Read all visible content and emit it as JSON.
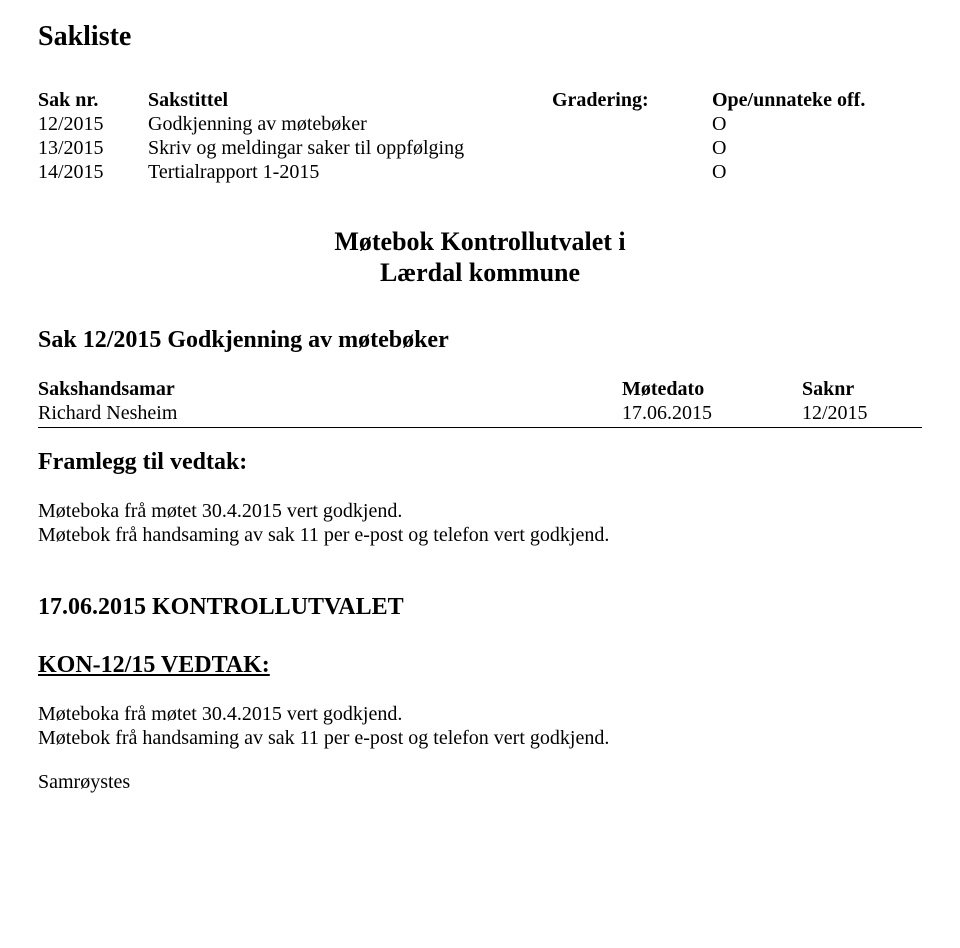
{
  "title": "Sakliste",
  "header": {
    "nr": "Sak nr.",
    "title": "Sakstittel",
    "grad": "Gradering:",
    "ope": "Ope/unnateke off."
  },
  "items": [
    {
      "nr": "12/2015",
      "title": "Godkjenning av møtebøker",
      "ope": "O"
    },
    {
      "nr": "13/2015",
      "title": "Skriv og meldingar saker til oppfølging",
      "ope": "O"
    },
    {
      "nr": "14/2015",
      "title": "Tertialrapport 1-2015",
      "ope": "O"
    }
  ],
  "centerblock": {
    "line1": "Møtebok Kontrollutvalet i",
    "line2": "Lærdal kommune"
  },
  "sak_heading": "Sak 12/2015 Godkjenning av møtebøker",
  "sh": {
    "name_label": "Sakshandsamar",
    "date_label": "Møtedato",
    "saknr_label": "Saknr",
    "name": "Richard Nesheim",
    "date": "17.06.2015",
    "saknr": "12/2015"
  },
  "framlegg_heading": "Framlegg til vedtak:",
  "framlegg": {
    "line1": "Møteboka frå møtet 30.4.2015 vert godkjend.",
    "line2": "Møtebok frå handsaming av sak 11 per e-post og telefon vert godkjend."
  },
  "ku_heading": "17.06.2015 KONTROLLUTVALET",
  "vedtak_heading": "KON-12/15 VEDTAK:",
  "vedtak": {
    "line1": "Møteboka frå møtet 30.4.2015 vert godkjend.",
    "line2": "Møtebok frå handsaming av sak 11 per e-post og telefon vert godkjend."
  },
  "samroystes": "Samrøystes"
}
